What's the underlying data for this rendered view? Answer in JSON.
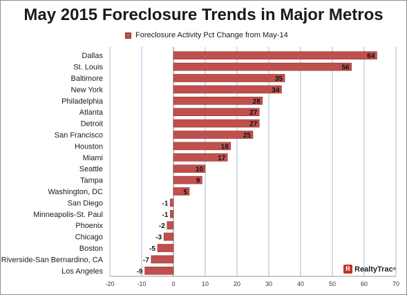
{
  "chart_data": {
    "type": "bar",
    "orientation": "horizontal",
    "title": "May 2015 Foreclosure Trends in Major Metros",
    "categories": [
      "Dallas",
      "St. Louis",
      "Baltimore",
      "New York",
      "Philadelphia",
      "Atlanta",
      "Detroit",
      "San Francisco",
      "Houston",
      "Miami",
      "Seattle",
      "Tampa",
      "Washington, DC",
      "San Diego",
      "Minneapolis-St. Paul",
      "Phoenix",
      "Chicago",
      "Boston",
      "Riverside-San Bernardino, CA",
      "Los Angeles"
    ],
    "series": [
      {
        "name": "Foreclosure Activity Pct Change from May-14",
        "values": [
          64,
          56,
          35,
          34,
          28,
          27,
          27,
          25,
          18,
          17,
          10,
          9,
          5,
          -1,
          -1,
          -2,
          -3,
          -5,
          -7,
          -9
        ],
        "labels": [
          "64",
          "56",
          "35",
          "34",
          "28",
          "27",
          "27",
          "25",
          "18",
          "17",
          "10",
          "9",
          "5",
          "-1",
          "-1",
          "-2",
          "-3",
          "-5",
          "-7",
          "-9"
        ]
      }
    ],
    "xlim": [
      -20,
      70
    ],
    "xticks": [
      -20,
      -10,
      0,
      10,
      20,
      30,
      40,
      50,
      60,
      70
    ],
    "xtick_labels": [
      "-20",
      "-10",
      "0",
      "10",
      "20",
      "30",
      "40",
      "50",
      "60",
      "70"
    ],
    "xlabel": "",
    "ylabel": "",
    "grid": "vertical",
    "legend_position": "top",
    "bar_color": "#c0504d",
    "bar_edge_color": "#8e2f2c",
    "grid_color": "#9db8d9"
  },
  "logo": {
    "mark": "R",
    "text": "RealtyTrac",
    "tm": "®"
  }
}
